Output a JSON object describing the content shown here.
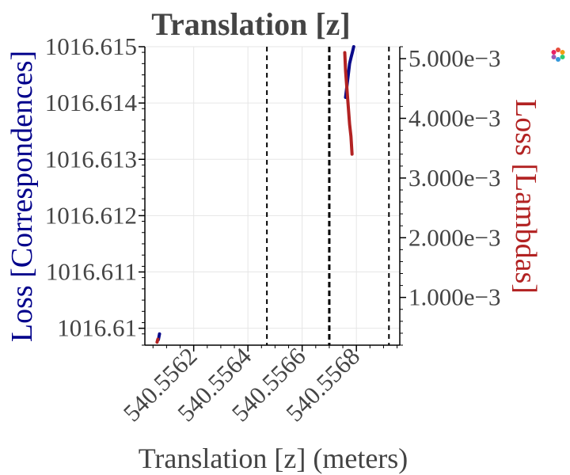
{
  "chart_data": {
    "type": "line",
    "title": "Translation [z]",
    "xlabel": "Translation [z] (meters)",
    "ylabel_left": "Loss [Correspondences]",
    "ylabel_right": "Loss [Lambdas]",
    "xlim": [
      540.55602,
      540.55696
    ],
    "ylim_left": [
      1016.6097,
      1016.615
    ],
    "ylim_right": [
      0.0002,
      0.0052
    ],
    "x_ticks": [
      540.5562,
      540.5564,
      540.5566,
      540.5568
    ],
    "x_tick_labels": [
      "540.5562",
      "540.5564",
      "540.5566",
      "540.5568"
    ],
    "y_left_ticks": [
      1016.61,
      1016.611,
      1016.612,
      1016.613,
      1016.614,
      1016.615
    ],
    "y_left_tick_labels": [
      "1016.61",
      "1016.611",
      "1016.612",
      "1016.613",
      "1016.614",
      "1016.615"
    ],
    "y_right_ticks": [
      0.001,
      0.002,
      0.003,
      0.004,
      0.005
    ],
    "y_right_tick_labels": [
      "1.000e−3",
      "2.000e−3",
      "3.000e−3",
      "4.000e−3",
      "5.000e−3"
    ],
    "grid": true,
    "vlines": [
      {
        "x": 540.55647,
        "style": "dashed"
      },
      {
        "x": 540.5567,
        "style": "dashed-bold"
      },
      {
        "x": 540.55692,
        "style": "dashed"
      }
    ],
    "series": [
      {
        "axis": "left",
        "color": "#0a0a8a",
        "x": [
          540.55607,
          540.556072,
          540.556074
        ],
        "y": [
          1016.6098,
          1016.60985,
          1016.6099
        ]
      },
      {
        "axis": "left",
        "color": "#0a0a8a",
        "x": [
          540.55676,
          540.556765,
          540.55677,
          540.556775,
          540.55678,
          540.556785,
          540.55679
        ],
        "y": [
          1016.6141,
          1016.6143,
          1016.6145,
          1016.6147,
          1016.6148,
          1016.6149,
          1016.615
        ]
      },
      {
        "axis": "right",
        "color": "#b22222",
        "x": [
          540.556065,
          540.556068
        ],
        "y": [
          0.00025,
          0.0003
        ]
      },
      {
        "axis": "right",
        "color": "#b22222",
        "x": [
          540.556757,
          540.55676,
          540.556765,
          540.55677,
          540.556775,
          540.55678,
          540.556784
        ],
        "y": [
          0.0051,
          0.0048,
          0.0045,
          0.0042,
          0.0039,
          0.0037,
          0.0034
        ]
      }
    ],
    "colors": {
      "axis_text": "#444444",
      "left_label": "#00008b",
      "right_label": "#b22222",
      "grid": "#e6e6e6"
    }
  },
  "toolbar": {
    "logo_icon": "plotly-logo-icon"
  }
}
